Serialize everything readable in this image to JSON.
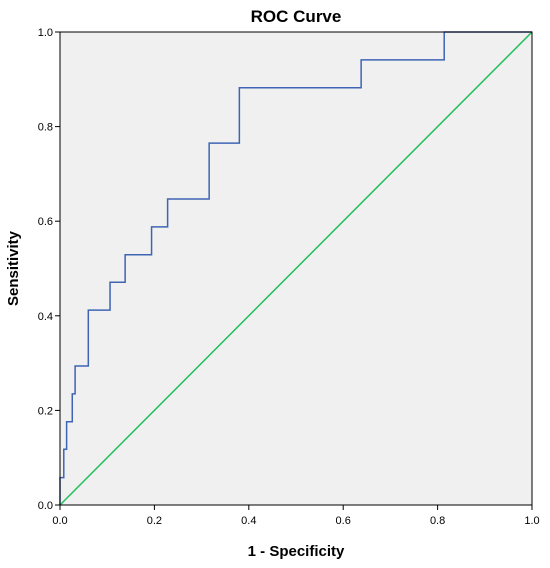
{
  "chart_data": {
    "type": "line",
    "title": "ROC Curve",
    "xlabel": "1 - Specificity",
    "ylabel": "Sensitivity",
    "xlim": [
      0.0,
      1.0
    ],
    "ylim": [
      0.0,
      1.0
    ],
    "x_ticks": [
      "0.0",
      "0.2",
      "0.4",
      "0.6",
      "0.8",
      "1.0"
    ],
    "y_ticks": [
      "0.0",
      "0.2",
      "0.4",
      "0.6",
      "0.8",
      "1.0"
    ],
    "grid": false,
    "plot_background": "#f0f0f0",
    "series": [
      {
        "color": "#3e64b4",
        "step": true,
        "x": [
          0.0,
          0.0,
          0.008,
          0.008,
          0.014,
          0.014,
          0.026,
          0.026,
          0.032,
          0.032,
          0.06,
          0.06,
          0.106,
          0.106,
          0.138,
          0.138,
          0.194,
          0.194,
          0.228,
          0.228,
          0.316,
          0.316,
          0.38,
          0.38,
          0.638,
          0.638,
          0.814,
          0.814,
          1.0
        ],
        "y": [
          0.0,
          0.058,
          0.058,
          0.118,
          0.118,
          0.176,
          0.176,
          0.235,
          0.235,
          0.294,
          0.294,
          0.412,
          0.412,
          0.471,
          0.471,
          0.529,
          0.529,
          0.588,
          0.588,
          0.647,
          0.647,
          0.765,
          0.765,
          0.882,
          0.882,
          0.941,
          0.941,
          1.0,
          1.0
        ]
      },
      {
        "color": "#1fbf5a",
        "x": [
          0.0,
          1.0
        ],
        "y": [
          0.0,
          1.0
        ]
      }
    ]
  }
}
